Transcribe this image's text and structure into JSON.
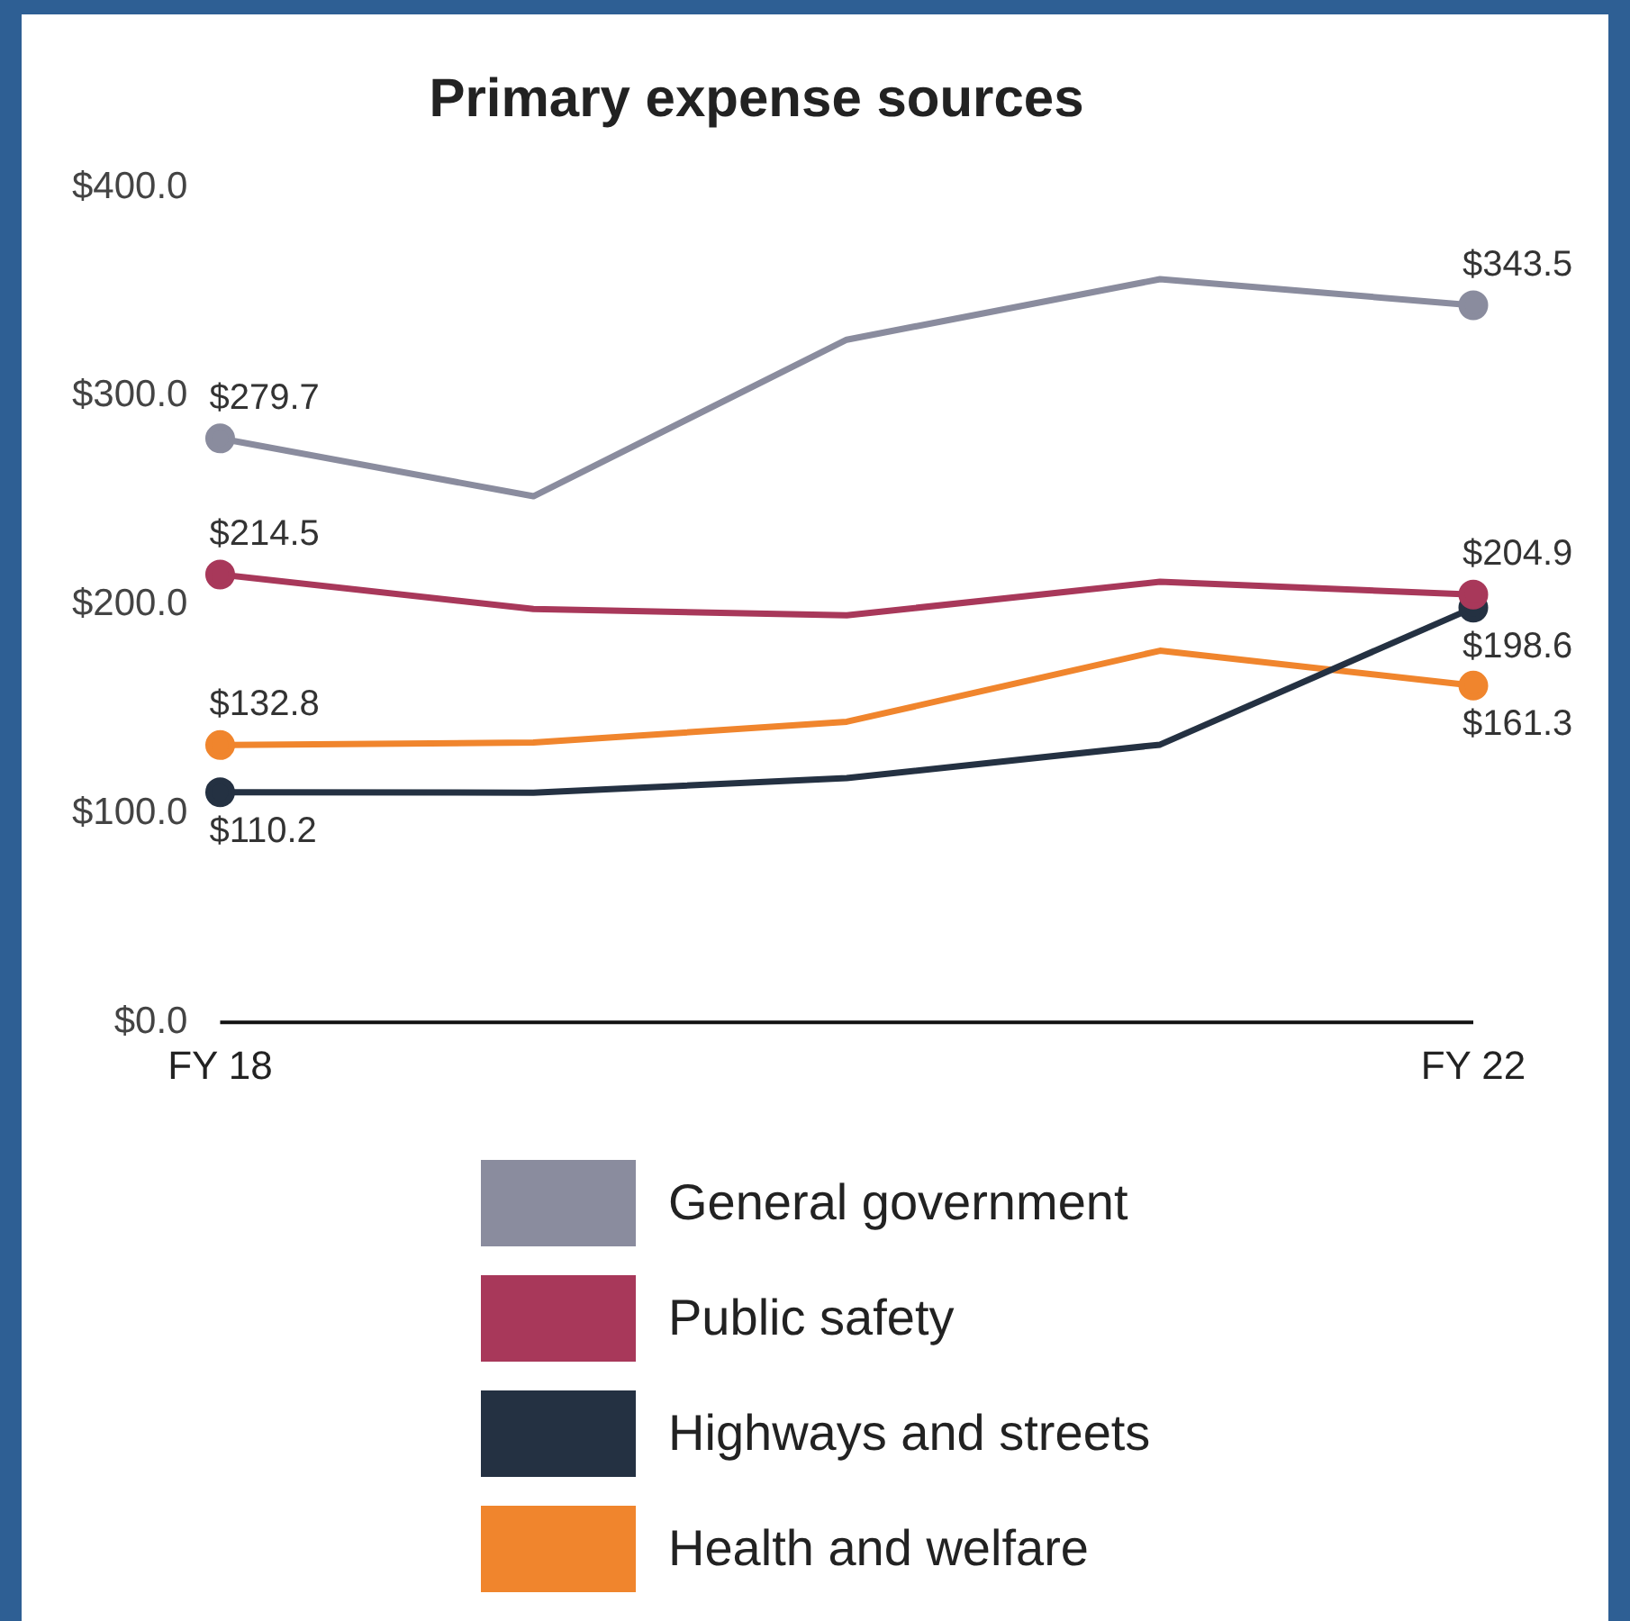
{
  "chart_data": {
    "type": "line",
    "title": "Primary expense sources",
    "categories": [
      "FY 18",
      null,
      null,
      null,
      "FY 22"
    ],
    "ylim": [
      0,
      400
    ],
    "yticks": [
      {
        "value": 0,
        "label": "$0.0"
      },
      {
        "value": 100,
        "label": "$100.0"
      },
      {
        "value": 200,
        "label": "$200.0"
      },
      {
        "value": 300,
        "label": "$300.0"
      },
      {
        "value": 400,
        "label": "$400.0"
      }
    ],
    "grid": false,
    "legend": "bottom",
    "line_style": "solid",
    "series": [
      {
        "name": "General government",
        "color": "#8a8c9e",
        "values": [
          279.7,
          252,
          327,
          356,
          343.5
        ],
        "value_labels": [
          "$279.7",
          null,
          null,
          null,
          "$343.5"
        ]
      },
      {
        "name": "Public safety",
        "color": "#a8385a",
        "values": [
          214.5,
          198,
          195,
          211,
          204.9
        ],
        "value_labels": [
          "$214.5",
          null,
          null,
          null,
          "$204.9"
        ]
      },
      {
        "name": "Highways and streets",
        "color": "#243142",
        "values": [
          110.2,
          110,
          117,
          133,
          198.6
        ],
        "value_labels": [
          "$110.2",
          null,
          null,
          null,
          "$198.6"
        ]
      },
      {
        "name": "Health and welfare",
        "color": "#f0852d",
        "values": [
          132.8,
          134,
          144,
          178,
          161.3
        ],
        "value_labels": [
          "$132.8",
          null,
          null,
          null,
          "$161.3"
        ]
      }
    ]
  }
}
